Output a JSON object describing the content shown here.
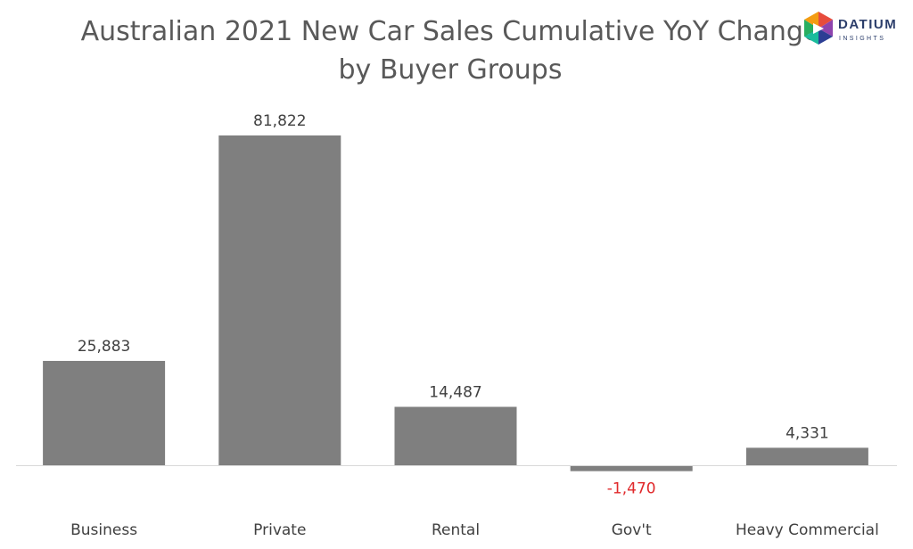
{
  "logo": {
    "name": "DATIUM",
    "tagline": "INSIGHTS",
    "icon": "datium-logo-icon"
  },
  "chart_data": {
    "type": "bar",
    "title": "Australian 2021 New Car Sales Cumulative YoY Change by Buyer Groups",
    "categories": [
      "Business",
      "Private",
      "Rental",
      "Gov't",
      "Heavy Commercial"
    ],
    "values": [
      25883,
      81822,
      14487,
      -1470,
      4331
    ],
    "value_labels": [
      "25,883",
      "81,822",
      "14,487",
      "-1,470",
      "4,331"
    ],
    "xlabel": "",
    "ylabel": "",
    "ylim": [
      -5000,
      90000
    ],
    "grid": false,
    "legend": "none",
    "colors": {
      "bar": "#7f7f7f",
      "negative_label": "#e0292b",
      "label": "#404040",
      "axis": "#d9d9d9"
    }
  }
}
